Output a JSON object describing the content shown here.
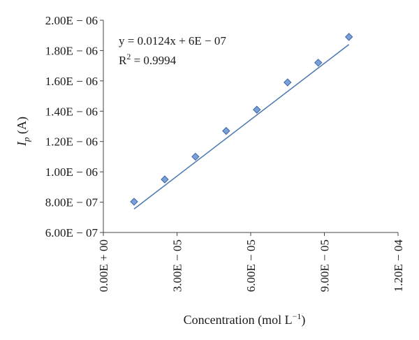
{
  "chart_data": {
    "type": "scatter",
    "xlabel": "Concentration (mol L",
    "xlabel_sup": "−1",
    "xlabel_close": ")",
    "ylabel_main": "I",
    "ylabel_sub": "p",
    "ylabel_unit": " (A)",
    "xlim": [
      0,
      0.00012
    ],
    "ylim": [
      6e-07,
      2e-06
    ],
    "x_ticks": [
      {
        "value": 0,
        "label": "0.00E + 00"
      },
      {
        "value": 3e-05,
        "label": "3.00E − 05"
      },
      {
        "value": 6e-05,
        "label": "6.00E − 05"
      },
      {
        "value": 9e-05,
        "label": "9.00E − 05"
      },
      {
        "value": 0.00012,
        "label": "1.20E − 04"
      }
    ],
    "y_ticks": [
      {
        "value": 6e-07,
        "label": "6.00E − 07"
      },
      {
        "value": 8e-07,
        "label": "8.00E − 07"
      },
      {
        "value": 1e-06,
        "label": "1.00E − 06"
      },
      {
        "value": 1.2e-06,
        "label": "1.20E − 06"
      },
      {
        "value": 1.4e-06,
        "label": "1.40E − 06"
      },
      {
        "value": 1.6e-06,
        "label": "1.60E − 06"
      },
      {
        "value": 1.8e-06,
        "label": "1.80E − 06"
      },
      {
        "value": 2e-06,
        "label": "2.00E − 06"
      }
    ],
    "points": [
      {
        "x": 1.25e-05,
        "y": 8.03e-07
      },
      {
        "x": 2.5e-05,
        "y": 9.5e-07
      },
      {
        "x": 3.75e-05,
        "y": 1.1e-06
      },
      {
        "x": 5e-05,
        "y": 1.27e-06
      },
      {
        "x": 6.25e-05,
        "y": 1.41e-06
      },
      {
        "x": 7.5e-05,
        "y": 1.59e-06
      },
      {
        "x": 8.75e-05,
        "y": 1.72e-06
      },
      {
        "x": 0.0001,
        "y": 1.89e-06
      }
    ],
    "trendline": {
      "slope": 0.0124,
      "intercept": 6e-07
    },
    "equation": "y = 0.0124x + 6E − 07",
    "r_squared_label": "R",
    "r_squared_sup": "2",
    "r_squared_value": " = 0.9994",
    "grid": false,
    "legend": "none",
    "colors": {
      "marker_fill": "#7aa0d8",
      "marker_stroke": "#3d64a8",
      "line": "#4a78b0"
    }
  }
}
